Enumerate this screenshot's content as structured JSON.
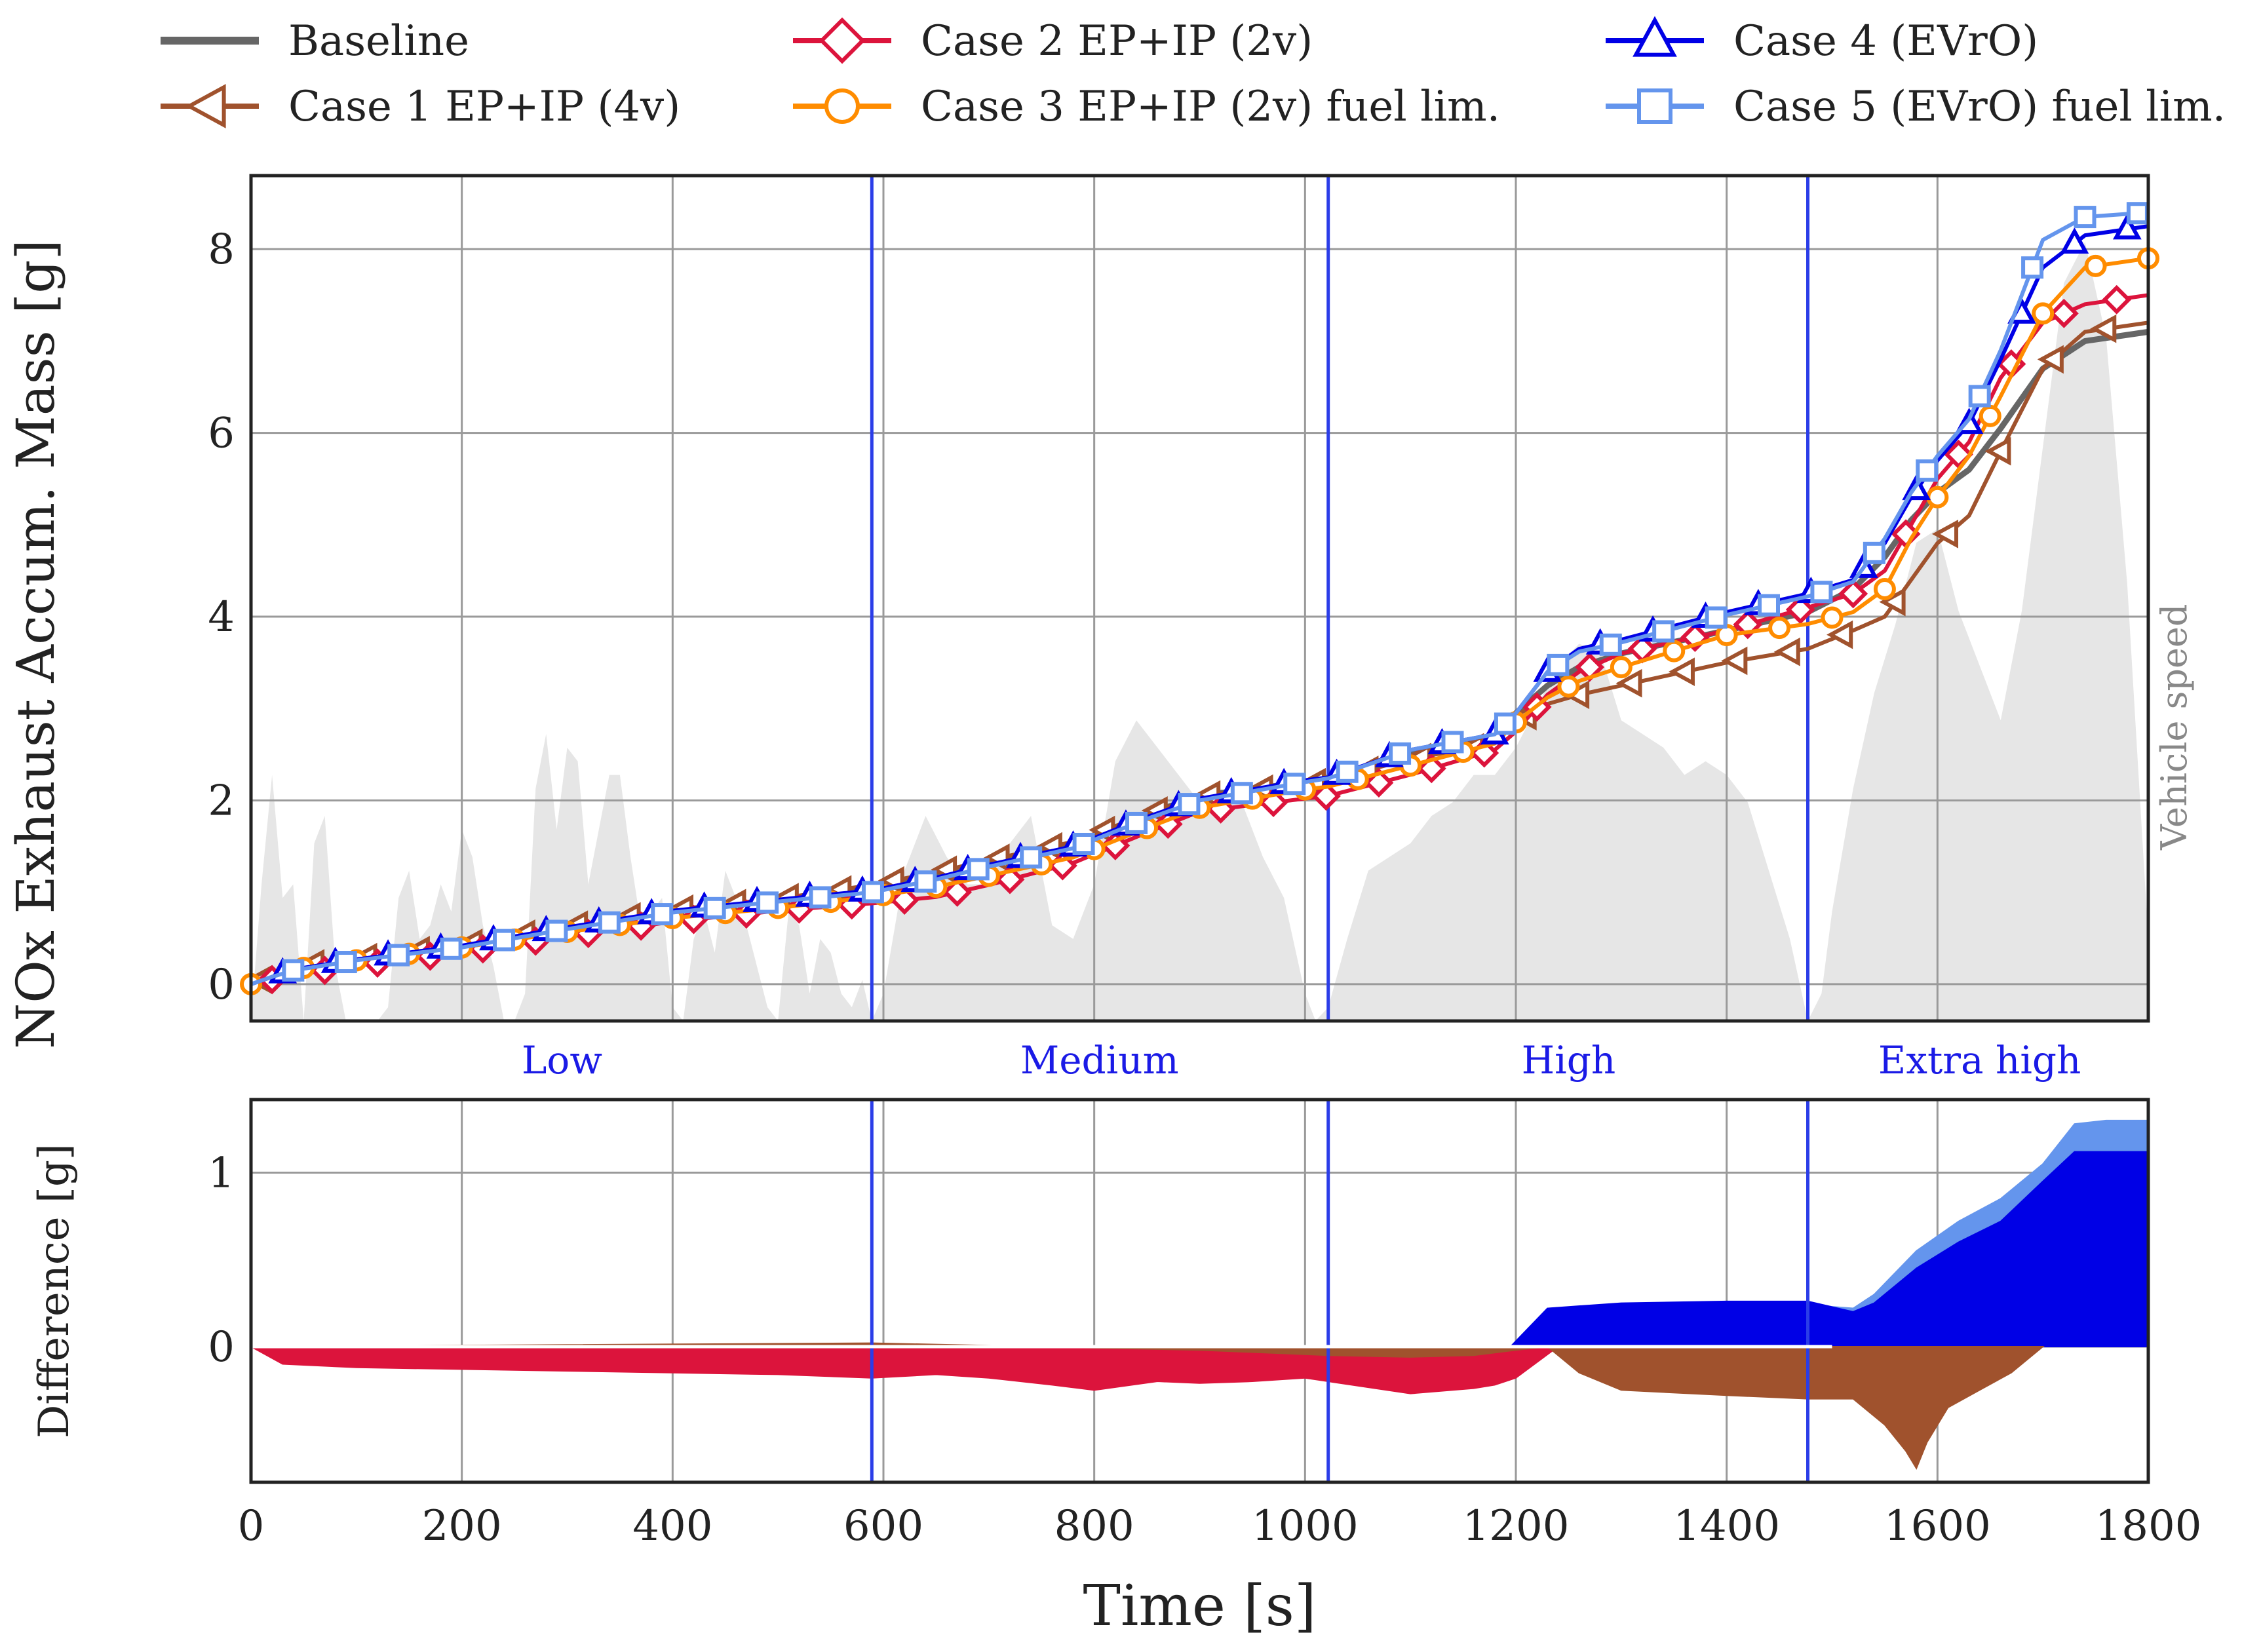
{
  "colors": {
    "baseline": "#666666",
    "case1": "#a0522d",
    "case2": "#dc143c",
    "case3": "#ff8c00",
    "case4": "#0000e6",
    "case5": "#6495ed",
    "speed": "#e6e6e6",
    "phase": "#2b3de8",
    "phase_text": "#1a1ae6"
  },
  "legend": [
    {
      "key": "baseline",
      "label": "Baseline",
      "marker": "none"
    },
    {
      "key": "case1",
      "label": "Case 1  EP+IP (4v)",
      "marker": "tri-left"
    },
    {
      "key": "case2",
      "label": "Case 2 EP+IP (2v)",
      "marker": "diamond"
    },
    {
      "key": "case3",
      "label": "Case 3 EP+IP (2v) fuel lim.",
      "marker": "circle"
    },
    {
      "key": "case4",
      "label": "Case 4 (EVrO)",
      "marker": "tri-up"
    },
    {
      "key": "case5",
      "label": "Case 5 (EVrO) fuel lim.",
      "marker": "square"
    }
  ],
  "chart_data": [
    {
      "type": "line",
      "ylabel": "NOx Exhaust Accum. Mass [g]",
      "xlim": [
        0,
        1800
      ],
      "ylim": [
        -0.4,
        8.8
      ],
      "yticks": [
        0,
        2,
        4,
        6,
        8
      ],
      "xticks": [
        0,
        200,
        400,
        600,
        800,
        1000,
        1200,
        1400,
        1600,
        1800
      ],
      "grid": true,
      "speed_label": "Vehicle speed",
      "phase_boundaries": [
        589,
        1022,
        1477
      ],
      "phases": [
        {
          "name": "Low",
          "center": 295
        },
        {
          "name": "Medium",
          "center": 805
        },
        {
          "name": "High",
          "center": 1250
        },
        {
          "name": "Extra high",
          "center": 1640
        }
      ],
      "series": [
        {
          "key": "baseline",
          "name": "Baseline",
          "x": [
            0,
            20,
            40,
            100,
            200,
            300,
            400,
            500,
            589,
            650,
            700,
            780,
            850,
            900,
            1000,
            1022,
            1100,
            1180,
            1200,
            1230,
            1260,
            1300,
            1400,
            1477,
            1520,
            1550,
            1575,
            1600,
            1630,
            1660,
            1700,
            1740,
            1800
          ],
          "y": [
            0,
            0.1,
            0.18,
            0.27,
            0.42,
            0.62,
            0.8,
            0.92,
            1.05,
            1.2,
            1.32,
            1.52,
            1.85,
            2.05,
            2.2,
            2.25,
            2.5,
            2.7,
            2.95,
            3.25,
            3.45,
            3.6,
            3.85,
            4.05,
            4.3,
            4.65,
            5.05,
            5.35,
            5.6,
            6.05,
            6.7,
            7.0,
            7.1
          ]
        },
        {
          "key": "case1",
          "name": "Case 1  EP+IP (4v)",
          "x": [
            0,
            20,
            40,
            100,
            200,
            300,
            400,
            500,
            589,
            650,
            700,
            780,
            850,
            900,
            1000,
            1022,
            1100,
            1180,
            1200,
            1230,
            1260,
            1300,
            1400,
            1477,
            1520,
            1550,
            1575,
            1600,
            1630,
            1660,
            1700,
            1740,
            1800
          ],
          "y": [
            0,
            0.1,
            0.2,
            0.28,
            0.43,
            0.63,
            0.81,
            0.93,
            1.08,
            1.22,
            1.35,
            1.55,
            1.85,
            2.05,
            2.18,
            2.22,
            2.45,
            2.62,
            2.85,
            3.05,
            3.15,
            3.25,
            3.5,
            3.65,
            3.85,
            4.0,
            4.4,
            4.8,
            5.1,
            5.8,
            6.7,
            7.1,
            7.2
          ]
        },
        {
          "key": "case2",
          "name": "Case 2 EP+IP (2v)",
          "x": [
            0,
            20,
            40,
            100,
            200,
            300,
            400,
            500,
            589,
            650,
            700,
            780,
            850,
            900,
            1000,
            1022,
            1100,
            1180,
            1200,
            1230,
            1260,
            1300,
            1400,
            1477,
            1520,
            1550,
            1575,
            1600,
            1630,
            1660,
            1700,
            1740,
            1800
          ],
          "y": [
            0,
            0.05,
            0.1,
            0.2,
            0.35,
            0.52,
            0.68,
            0.8,
            0.88,
            0.95,
            1.08,
            1.32,
            1.65,
            1.88,
            2.02,
            2.05,
            2.28,
            2.55,
            2.75,
            3.15,
            3.4,
            3.6,
            3.85,
            4.1,
            4.25,
            4.5,
            5.0,
            5.5,
            5.9,
            6.6,
            7.2,
            7.4,
            7.5
          ]
        },
        {
          "key": "case3",
          "name": "Case 3 EP+IP (2v) fuel lim.",
          "x": [
            0,
            20,
            40,
            100,
            200,
            300,
            400,
            500,
            589,
            650,
            700,
            780,
            850,
            900,
            1000,
            1022,
            1100,
            1180,
            1200,
            1230,
            1260,
            1300,
            1400,
            1477,
            1520,
            1550,
            1575,
            1600,
            1630,
            1660,
            1700,
            1740,
            1800
          ],
          "y": [
            0,
            0.08,
            0.16,
            0.26,
            0.4,
            0.57,
            0.72,
            0.83,
            0.95,
            1.06,
            1.18,
            1.38,
            1.7,
            1.92,
            2.12,
            2.15,
            2.38,
            2.62,
            2.85,
            3.12,
            3.3,
            3.45,
            3.8,
            3.92,
            4.05,
            4.3,
            4.85,
            5.3,
            5.75,
            6.4,
            7.3,
            7.8,
            7.9
          ]
        },
        {
          "key": "case4",
          "name": "Case 4 (EVrO)",
          "x": [
            0,
            20,
            40,
            100,
            200,
            300,
            400,
            500,
            589,
            650,
            700,
            780,
            850,
            900,
            1000,
            1022,
            1100,
            1180,
            1200,
            1230,
            1260,
            1300,
            1400,
            1477,
            1520,
            1550,
            1575,
            1600,
            1630,
            1660,
            1700,
            1740,
            1800
          ],
          "y": [
            0,
            0.08,
            0.16,
            0.27,
            0.42,
            0.62,
            0.8,
            0.92,
            1.02,
            1.16,
            1.3,
            1.5,
            1.82,
            2.02,
            2.22,
            2.25,
            2.55,
            2.72,
            2.95,
            3.4,
            3.65,
            3.75,
            4.05,
            4.25,
            4.4,
            4.8,
            5.3,
            5.7,
            6.1,
            6.8,
            7.8,
            8.15,
            8.25
          ]
        },
        {
          "key": "case5",
          "name": "Case 5 (EVrO) fuel lim.",
          "x": [
            0,
            20,
            40,
            100,
            200,
            300,
            400,
            500,
            589,
            650,
            700,
            780,
            850,
            900,
            1000,
            1022,
            1100,
            1180,
            1200,
            1230,
            1260,
            1300,
            1400,
            1477,
            1520,
            1550,
            1575,
            1600,
            1630,
            1660,
            1700,
            1740,
            1800
          ],
          "y": [
            0,
            0.08,
            0.15,
            0.26,
            0.4,
            0.6,
            0.78,
            0.9,
            1.0,
            1.14,
            1.28,
            1.48,
            1.8,
            2.0,
            2.2,
            2.24,
            2.55,
            2.72,
            2.95,
            3.4,
            3.62,
            3.72,
            4.02,
            4.22,
            4.38,
            4.85,
            5.35,
            5.75,
            6.15,
            6.9,
            8.1,
            8.35,
            8.4
          ]
        }
      ],
      "vehicle_speed": {
        "x": [
          0,
          10,
          20,
          30,
          40,
          50,
          60,
          70,
          80,
          90,
          100,
          110,
          120,
          130,
          140,
          150,
          160,
          170,
          180,
          190,
          200,
          210,
          220,
          230,
          240,
          250,
          260,
          270,
          280,
          290,
          300,
          310,
          320,
          330,
          340,
          350,
          360,
          370,
          380,
          390,
          400,
          410,
          420,
          430,
          440,
          450,
          460,
          470,
          480,
          490,
          500,
          510,
          520,
          530,
          540,
          550,
          560,
          570,
          580,
          589,
          600,
          620,
          640,
          660,
          680,
          700,
          720,
          740,
          760,
          780,
          800,
          820,
          840,
          860,
          880,
          900,
          920,
          940,
          960,
          980,
          1000,
          1010,
          1022,
          1040,
          1060,
          1080,
          1100,
          1120,
          1140,
          1160,
          1180,
          1200,
          1220,
          1240,
          1260,
          1280,
          1300,
          1320,
          1340,
          1360,
          1380,
          1400,
          1420,
          1440,
          1460,
          1477,
          1490,
          1500,
          1520,
          1540,
          1560,
          1580,
          1600,
          1620,
          1640,
          1660,
          1680,
          1700,
          1720,
          1740,
          1760,
          1780,
          1800
        ],
        "y": [
          0,
          0.5,
          0.9,
          0.45,
          0.5,
          0,
          0.65,
          0.75,
          0.2,
          0,
          0,
          0,
          0,
          0.05,
          0.45,
          0.55,
          0.3,
          0.35,
          0.5,
          0.4,
          0.7,
          0.6,
          0.35,
          0.2,
          0,
          0,
          0.1,
          0.85,
          1.05,
          0.7,
          1.0,
          0.95,
          0.5,
          0.7,
          0.9,
          0.9,
          0.6,
          0.35,
          0.4,
          0.45,
          0.05,
          0,
          0.3,
          0.4,
          0.25,
          0.55,
          0.45,
          0.35,
          0.2,
          0.05,
          0,
          0.4,
          0.35,
          0.1,
          0.3,
          0.25,
          0.1,
          0.05,
          0.15,
          0,
          0.1,
          0.55,
          0.75,
          0.6,
          0.5,
          0.5,
          0.65,
          0.75,
          0.35,
          0.3,
          0.5,
          0.95,
          1.1,
          1.0,
          0.9,
          0.8,
          0.85,
          0.8,
          0.6,
          0.45,
          0.1,
          0,
          0.05,
          0.3,
          0.55,
          0.6,
          0.65,
          0.75,
          0.8,
          0.9,
          0.9,
          1.0,
          1.15,
          1.3,
          1.38,
          1.35,
          1.1,
          1.05,
          1.0,
          0.9,
          0.95,
          0.9,
          0.8,
          0.55,
          0.3,
          0,
          0.1,
          0.4,
          0.85,
          1.2,
          1.45,
          1.75,
          1.8,
          1.5,
          1.3,
          1.1,
          1.5,
          2.1,
          2.7,
          2.85,
          2.5,
          1.6,
          0.3
        ]
      }
    },
    {
      "type": "area",
      "ylabel": "Difference [g]",
      "xlabel": "Time [s]",
      "xlim": [
        0,
        1800
      ],
      "ylim": [
        -0.78,
        1.42
      ],
      "yticks": [
        0,
        1
      ],
      "xticks": [
        0,
        200,
        400,
        600,
        800,
        1000,
        1200,
        1400,
        1600,
        1800
      ],
      "grid": true,
      "phase_boundaries": [
        589,
        1022,
        1477
      ],
      "series": [
        {
          "key": "case5",
          "name": "Case 5 (EVrO) fuel lim.",
          "x": [
            0,
            100,
            300,
            500,
            589,
            700,
            760,
            800,
            860,
            900,
            950,
            1000,
            1022,
            1100,
            1160,
            1180,
            1195,
            1230,
            1300,
            1400,
            1477,
            1520,
            1540,
            1580,
            1620,
            1660,
            1700,
            1730,
            1760,
            1800
          ],
          "y": [
            0,
            -0.02,
            -0.01,
            -0.03,
            -0.04,
            -0.03,
            -0.05,
            -0.02,
            -0.03,
            -0.02,
            -0.05,
            -0.03,
            -0.04,
            -0.06,
            -0.08,
            -0.06,
            0,
            0.22,
            0.24,
            0.24,
            0.24,
            0.22,
            0.3,
            0.55,
            0.72,
            0.85,
            1.05,
            1.28,
            1.3,
            1.3
          ]
        },
        {
          "key": "case4",
          "name": "Case 4 (EVrO)",
          "x": [
            0,
            100,
            300,
            500,
            589,
            700,
            760,
            800,
            860,
            900,
            950,
            1000,
            1022,
            1100,
            1160,
            1180,
            1195,
            1230,
            1300,
            1400,
            1477,
            1520,
            1540,
            1580,
            1620,
            1660,
            1700,
            1730,
            1760,
            1800
          ],
          "y": [
            0,
            -0.03,
            -0.02,
            -0.04,
            -0.05,
            -0.05,
            -0.08,
            -0.04,
            -0.1,
            -0.05,
            -0.08,
            -0.06,
            -0.05,
            -0.08,
            -0.1,
            -0.08,
            0,
            0.22,
            0.25,
            0.26,
            0.26,
            0.2,
            0.25,
            0.45,
            0.6,
            0.72,
            0.95,
            1.12,
            1.12,
            1.12
          ]
        },
        {
          "key": "case3",
          "name": "Case 3 EP+IP (2v) fuel lim.",
          "x": [
            0,
            100,
            300,
            500,
            589,
            700,
            760,
            800,
            860,
            900,
            950,
            1000,
            1022,
            1100,
            1160,
            1180,
            1200,
            1240
          ],
          "y": [
            0,
            -0.05,
            -0.08,
            -0.1,
            -0.1,
            -0.09,
            -0.14,
            -0.12,
            -0.12,
            -0.1,
            -0.13,
            -0.12,
            -0.1,
            -0.17,
            -0.18,
            -0.16,
            -0.1,
            0
          ]
        },
        {
          "key": "case2",
          "name": "Case 2 EP+IP (2v)",
          "x": [
            0,
            30,
            100,
            300,
            500,
            589,
            650,
            700,
            760,
            800,
            860,
            900,
            950,
            1000,
            1022,
            1100,
            1160,
            1180,
            1200,
            1240
          ],
          "y": [
            0,
            -0.1,
            -0.12,
            -0.14,
            -0.16,
            -0.18,
            -0.16,
            -0.18,
            -0.22,
            -0.25,
            -0.2,
            -0.21,
            -0.2,
            -0.18,
            -0.2,
            -0.27,
            -0.24,
            -0.22,
            -0.18,
            0
          ]
        },
        {
          "key": "case1",
          "name": "Case 1  EP+IP (4v)",
          "x": [
            0,
            300,
            589,
            900,
            1022,
            1100,
            1160,
            1200,
            1230,
            1260,
            1300,
            1400,
            1477,
            1520,
            1550,
            1570,
            1580,
            1590,
            1610,
            1640,
            1670,
            1700
          ],
          "y": [
            0,
            0.01,
            0.02,
            -0.02,
            -0.05,
            -0.06,
            -0.05,
            -0.02,
            0,
            -0.15,
            -0.25,
            -0.28,
            -0.3,
            -0.3,
            -0.45,
            -0.6,
            -0.7,
            -0.55,
            -0.35,
            -0.25,
            -0.15,
            0
          ]
        }
      ]
    }
  ]
}
